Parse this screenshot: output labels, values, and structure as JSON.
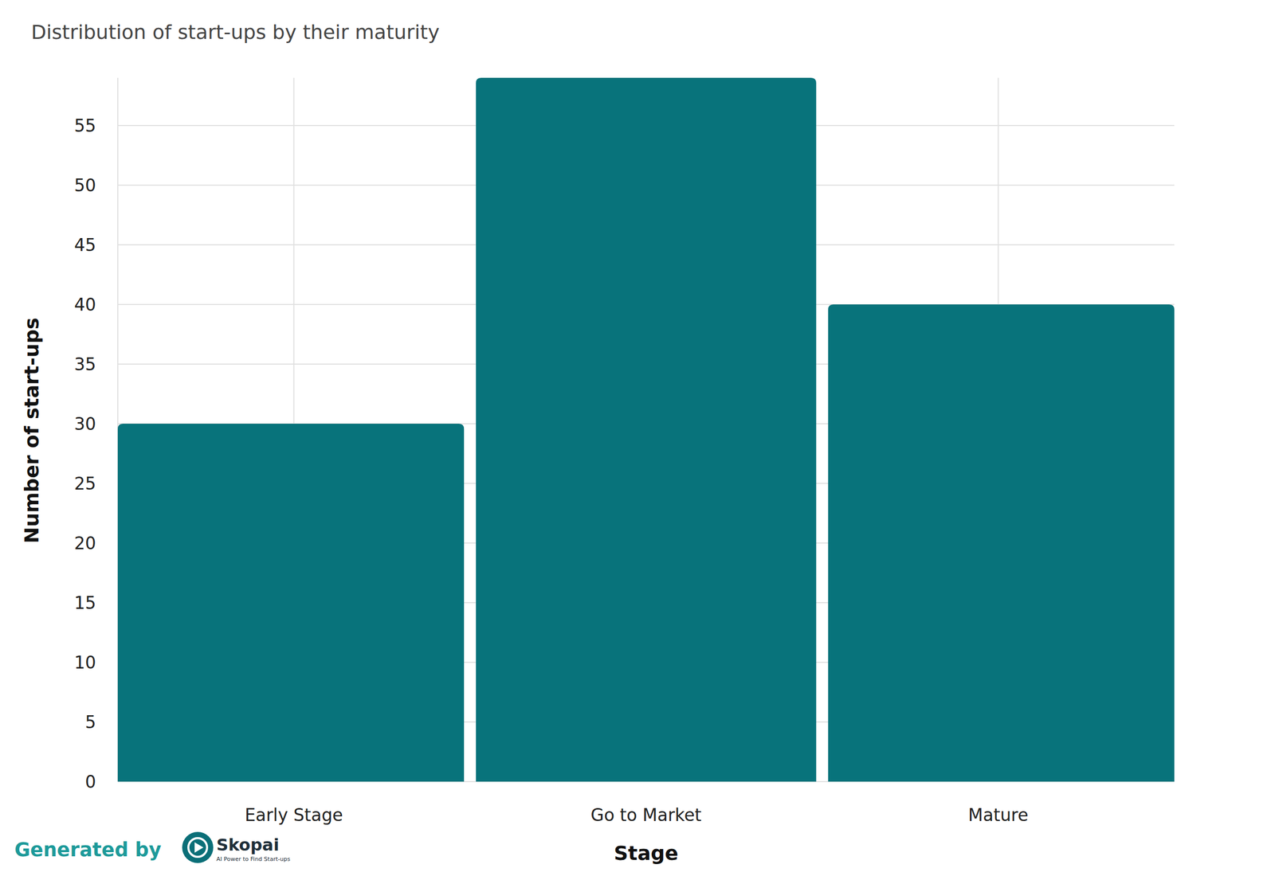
{
  "chart_data": {
    "type": "bar",
    "title": "Distribution of start-ups by their maturity",
    "x_label": "Stage",
    "y_label": "Number of start-ups",
    "categories": [
      "Early Stage",
      "Go to Market",
      "Mature"
    ],
    "values": [
      30,
      59,
      40
    ],
    "color": "#08737b",
    "ylim": [
      0,
      59
    ],
    "yticks": [
      0,
      5,
      10,
      15,
      20,
      25,
      30,
      35,
      40,
      45,
      50,
      55
    ],
    "grid": true,
    "annotations": [
      "Generated by",
      "Skopai",
      "AI Power to Find Start-ups"
    ]
  }
}
